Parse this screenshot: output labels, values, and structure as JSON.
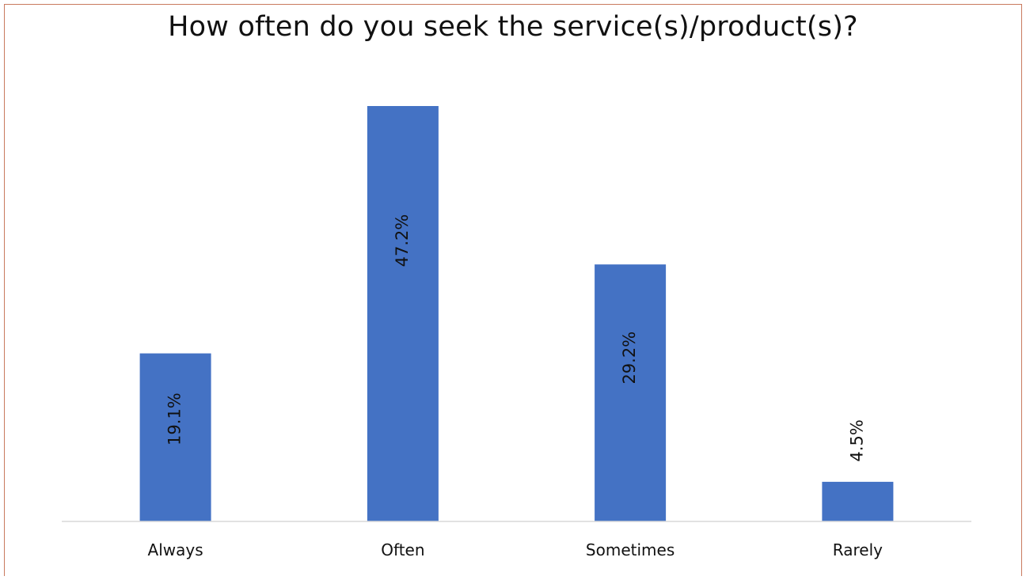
{
  "chart_data": {
    "type": "bar",
    "title": "How often do you seek the service(s)/product(s)?",
    "categories": [
      "Always",
      "Often",
      "Sometimes",
      "Rarely"
    ],
    "values": [
      19.1,
      47.2,
      29.2,
      4.5
    ],
    "data_labels": [
      "19.1%",
      "47.2%",
      "29.2%",
      "4.5%"
    ],
    "xlabel": "",
    "ylabel": "",
    "ylim": [
      0,
      48
    ],
    "grid": false,
    "legend": "none",
    "bar_color": "#4472C4",
    "axis_color": "#d9d9d9",
    "frame_color": "#c97a5e"
  }
}
